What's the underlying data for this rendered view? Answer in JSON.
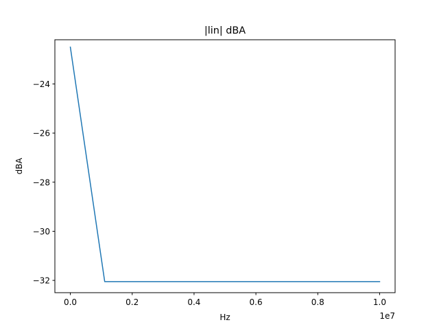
{
  "chart_data": {
    "type": "line",
    "title": "|lin| dBA",
    "xlabel": "Hz",
    "ylabel": "dBA",
    "x_offset_label": "1e7",
    "xlim": [
      -500000,
      10500000
    ],
    "ylim": [
      -32.5,
      -22.2
    ],
    "grid": false,
    "x_ticks": [
      {
        "value": 0,
        "label": "0.0"
      },
      {
        "value": 2000000,
        "label": "0.2"
      },
      {
        "value": 4000000,
        "label": "0.4"
      },
      {
        "value": 6000000,
        "label": "0.6"
      },
      {
        "value": 8000000,
        "label": "0.8"
      },
      {
        "value": 10000000,
        "label": "1.0"
      }
    ],
    "y_ticks": [
      {
        "value": -24,
        "label": "−24"
      },
      {
        "value": -26,
        "label": "−26"
      },
      {
        "value": -28,
        "label": "−28"
      },
      {
        "value": -30,
        "label": "−30"
      },
      {
        "value": -32,
        "label": "−32"
      }
    ],
    "series": [
      {
        "color": "#1f77b4",
        "x": [
          0,
          1111111,
          2222222,
          3333333,
          4444444,
          5555556,
          6666667,
          7777778,
          8888889,
          10000000
        ],
        "y": [
          -22.5,
          -32.05,
          -32.05,
          -32.05,
          -32.05,
          -32.05,
          -32.05,
          -32.05,
          -32.05,
          -32.05
        ]
      }
    ]
  }
}
